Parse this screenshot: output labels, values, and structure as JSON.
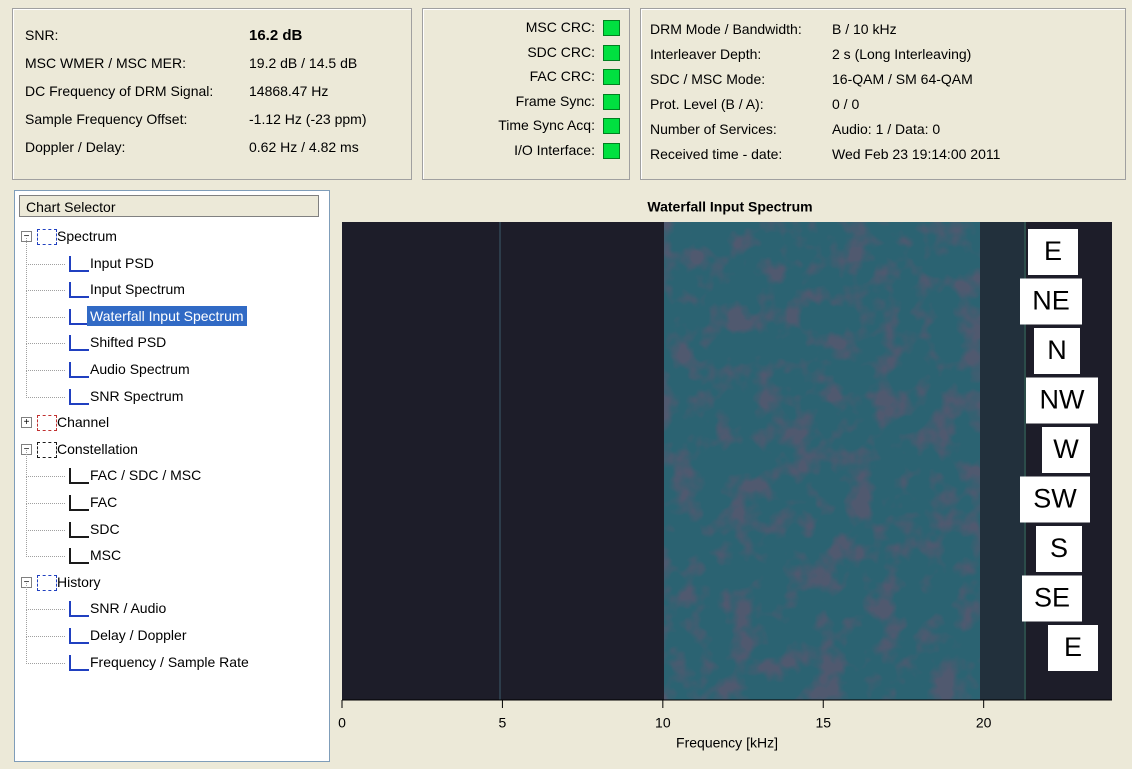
{
  "status": {
    "rows": [
      {
        "label": "SNR:",
        "value": "16.2 dB"
      },
      {
        "label": "MSC WMER / MSC MER:",
        "value": "19.2 dB / 14.5 dB"
      },
      {
        "label": "DC Frequency of DRM Signal:",
        "value": "14868.47 Hz"
      },
      {
        "label": "Sample Frequency Offset:",
        "value": "-1.12 Hz (-23 ppm)"
      },
      {
        "label": "Doppler / Delay:",
        "value": "0.62 Hz / 4.82 ms"
      }
    ]
  },
  "indicators": [
    "MSC CRC:",
    "SDC CRC:",
    "FAC CRC:",
    "Frame Sync:",
    "Time Sync Acq:",
    "I/O Interface:"
  ],
  "info": {
    "rows": [
      {
        "label": "DRM Mode / Bandwidth:",
        "value": "B / 10 kHz"
      },
      {
        "label": "Interleaver Depth:",
        "value": "2 s (Long Interleaving)"
      },
      {
        "label": "SDC / MSC Mode:",
        "value": "16-QAM / SM 64-QAM"
      },
      {
        "label": "Prot. Level (B / A):",
        "value": "0 / 0"
      },
      {
        "label": "Number of Services:",
        "value": "Audio: 1 / Data: 0"
      },
      {
        "label": "Received time - date:",
        "value": "Wed Feb 23 19:14:00 2011"
      }
    ]
  },
  "tree": {
    "header": "Chart Selector",
    "groups": [
      {
        "label": "Spectrum",
        "items": [
          {
            "label": "Input PSD"
          },
          {
            "label": "Input Spectrum"
          },
          {
            "label": "Waterfall Input Spectrum",
            "selected": true
          },
          {
            "label": "Shifted PSD"
          },
          {
            "label": "Audio Spectrum"
          },
          {
            "label": "SNR Spectrum"
          }
        ]
      },
      {
        "label": "Channel",
        "items": []
      },
      {
        "label": "Constellation",
        "items": [
          {
            "label": "FAC / SDC / MSC"
          },
          {
            "label": "FAC"
          },
          {
            "label": "SDC"
          },
          {
            "label": "MSC"
          }
        ]
      },
      {
        "label": "History",
        "items": [
          {
            "label": "SNR / Audio"
          },
          {
            "label": "Delay / Doppler"
          },
          {
            "label": "Frequency / Sample Rate"
          }
        ]
      }
    ]
  },
  "chart": {
    "title": "Waterfall Input Spectrum",
    "xlabel": "Frequency [kHz]",
    "xlim": [
      0,
      24
    ],
    "xticks": [
      0,
      5,
      10,
      15,
      20
    ],
    "overlay_labels": [
      "E",
      "NE",
      "N",
      "NW",
      "W",
      "SW",
      "S",
      "SE",
      "E"
    ]
  }
}
